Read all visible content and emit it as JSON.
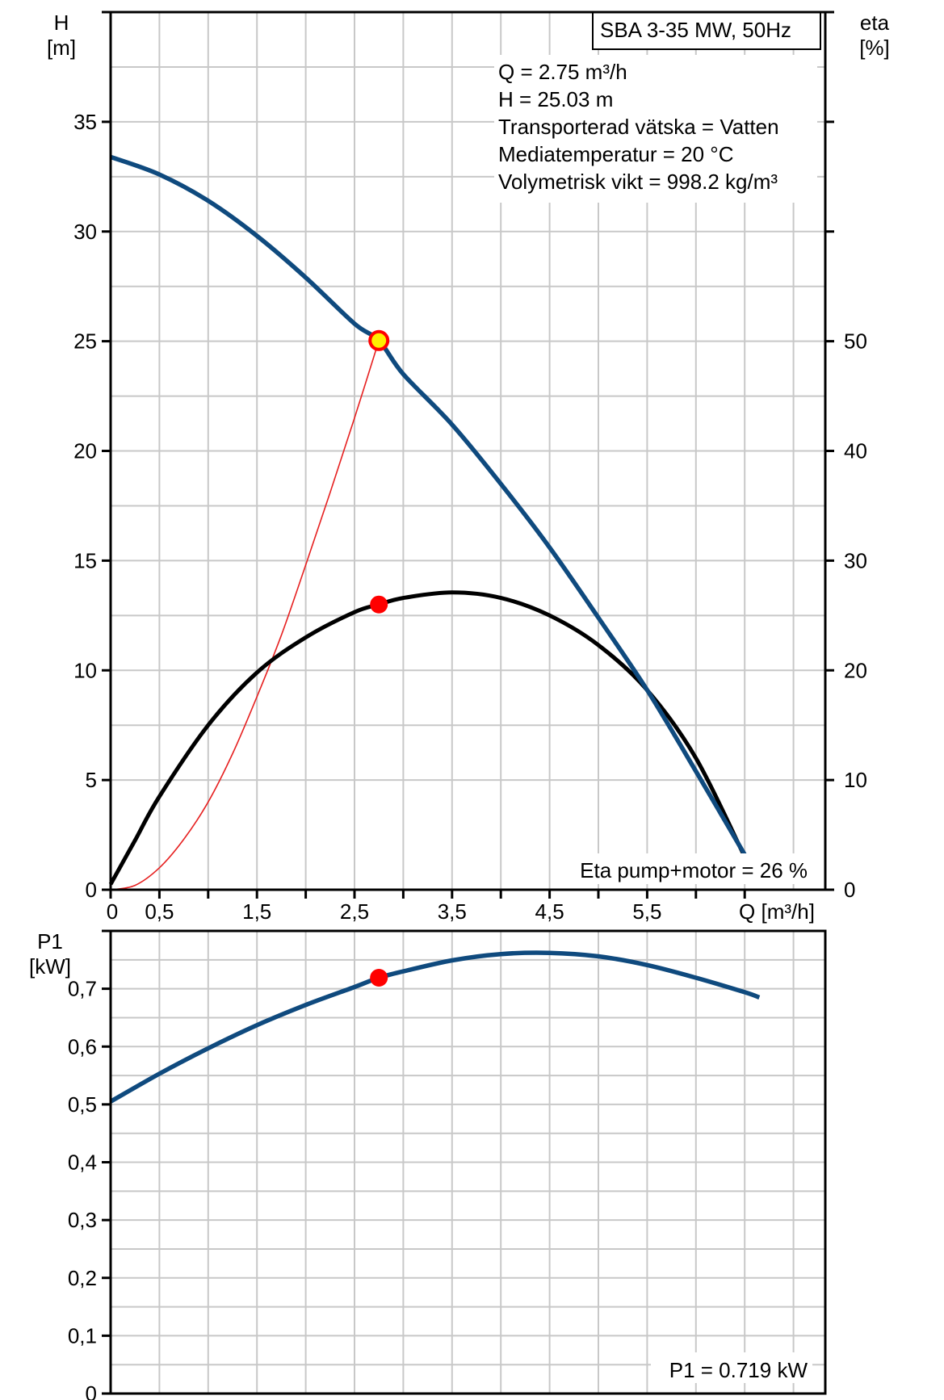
{
  "chart_data": [
    {
      "type": "line",
      "name_box": "SBA 3-35 MW, 50Hz",
      "info_lines": [
        "Q = 2.75 m³/h",
        "H = 25.03 m",
        "Transporterad vätska = Vatten",
        "Mediatemperatur = 20 °C",
        "Volymetrisk vikt = 998.2 kg/m³"
      ],
      "ylabel": [
        "H",
        "[m]"
      ],
      "y2label": [
        "eta",
        "[%]"
      ],
      "xlabel": "Q [m³/h]",
      "x_ticks": [
        "0",
        "0,5",
        "1,5",
        "2,5",
        "3,5",
        "4,5",
        "5,5"
      ],
      "y_ticks": [
        "0",
        "5",
        "10",
        "15",
        "20",
        "25",
        "30",
        "35"
      ],
      "y2_ticks": [
        "0",
        "10",
        "20",
        "30",
        "40",
        "50"
      ],
      "xlim": [
        0,
        7.3
      ],
      "ylim": [
        0,
        40
      ],
      "y2lim": [
        0,
        80
      ],
      "grid": true,
      "eta_note": "Eta pump+motor = 26 %",
      "colors": {
        "head": "#0f4a7e",
        "eta": "#000000",
        "system": "#e62020",
        "marker": "#ff0000",
        "duty_fill": "#ffee00"
      },
      "series": [
        {
          "id": "head",
          "axis": "left",
          "x": [
            0,
            0.5,
            1.0,
            1.5,
            2.0,
            2.5,
            2.75,
            3.0,
            3.5,
            4.0,
            4.5,
            5.0,
            5.5,
            6.0,
            6.5
          ],
          "y": [
            33.4,
            32.6,
            31.4,
            29.8,
            27.9,
            25.8,
            25.03,
            23.5,
            21.2,
            18.5,
            15.6,
            12.4,
            9.1,
            5.4,
            1.6
          ]
        },
        {
          "id": "eta",
          "axis": "right",
          "x": [
            0,
            0.25,
            0.5,
            1.0,
            1.5,
            2.0,
            2.5,
            2.75,
            3.0,
            3.5,
            4.0,
            4.5,
            5.0,
            5.5,
            6.0,
            6.5
          ],
          "y": [
            0.5,
            4.5,
            8.5,
            15.0,
            19.8,
            23.0,
            25.3,
            26.0,
            26.6,
            27.1,
            26.6,
            25.0,
            22.3,
            18.2,
            12.0,
            3.0
          ]
        },
        {
          "id": "system",
          "axis": "left",
          "x": [
            0,
            0.25,
            0.5,
            0.75,
            1.0,
            1.25,
            1.5,
            1.75,
            2.0,
            2.25,
            2.5,
            2.75
          ],
          "y": [
            0,
            0.2,
            1.0,
            2.3,
            4.0,
            6.2,
            8.8,
            11.6,
            14.8,
            18.1,
            21.5,
            25.03
          ]
        }
      ],
      "duty_point": {
        "x": 2.75,
        "y": 25.03
      },
      "eta_point": {
        "x": 2.75,
        "y": 26
      }
    },
    {
      "type": "line",
      "ylabel": [
        "P1",
        "[kW]"
      ],
      "y_ticks": [
        "0",
        "0,1",
        "0,2",
        "0,3",
        "0,4",
        "0,5",
        "0,6",
        "0,7"
      ],
      "xlim": [
        0,
        7.3
      ],
      "ylim": [
        0,
        0.8
      ],
      "grid": true,
      "p1_note": "P1 = 0.719 kW",
      "series": [
        {
          "id": "p1",
          "x": [
            0,
            0.5,
            1.0,
            1.5,
            2.0,
            2.5,
            2.75,
            3.0,
            3.5,
            4.0,
            4.5,
            5.0,
            5.5,
            6.0,
            6.5,
            6.65
          ],
          "y": [
            0.505,
            0.553,
            0.597,
            0.637,
            0.672,
            0.703,
            0.719,
            0.73,
            0.749,
            0.76,
            0.762,
            0.756,
            0.741,
            0.719,
            0.694,
            0.685
          ]
        }
      ],
      "point": {
        "x": 2.75,
        "y": 0.719
      }
    }
  ]
}
